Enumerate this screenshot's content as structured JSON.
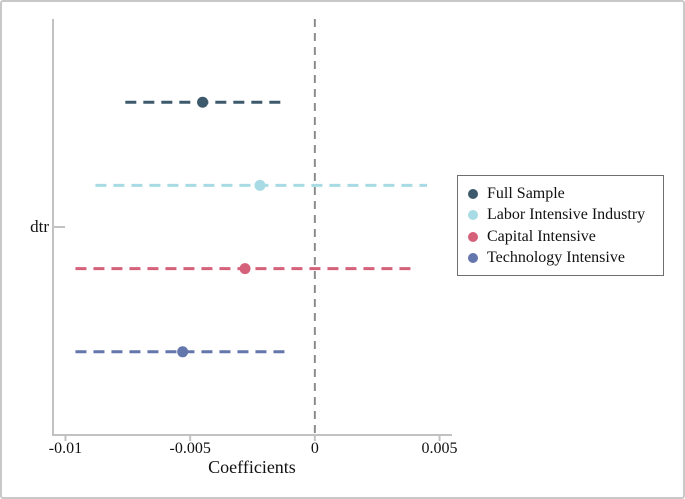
{
  "figure": {
    "background": "#ffffff",
    "border_color": "#c8c8c8"
  },
  "chart_data": {
    "type": "scatter",
    "subtype": "coefficient-plot",
    "title": "",
    "xlabel": "Coefficients",
    "ylabel": "dtr",
    "x_range": [
      -0.0105,
      0.0055
    ],
    "x_ticks": [
      -0.01,
      -0.005,
      0,
      0.005
    ],
    "x_tick_labels": [
      "-0.01",
      "-0.005",
      "0",
      "0.005"
    ],
    "grid": false,
    "zero_line": {
      "x": 0,
      "color": "#8c8c8c",
      "style": "dashed"
    },
    "axis_color": "#c2c2c2",
    "ci_style": "dashed",
    "legend_position": "right",
    "series": [
      {
        "name": "Full Sample",
        "color": "#3d5a6c",
        "estimate": -0.0045,
        "ci_low": -0.0076,
        "ci_high": -0.0012
      },
      {
        "name": "Labor Intensive Industry",
        "color": "#a8dbe4",
        "estimate": -0.0022,
        "ci_low": -0.0088,
        "ci_high": 0.0045
      },
      {
        "name": "Capital Intensive",
        "color": "#d5607a",
        "estimate": -0.0028,
        "ci_low": -0.0096,
        "ci_high": 0.0041
      },
      {
        "name": "Technology Intensive",
        "color": "#6377ac",
        "estimate": -0.0053,
        "ci_low": -0.0096,
        "ci_high": -0.001
      }
    ]
  }
}
